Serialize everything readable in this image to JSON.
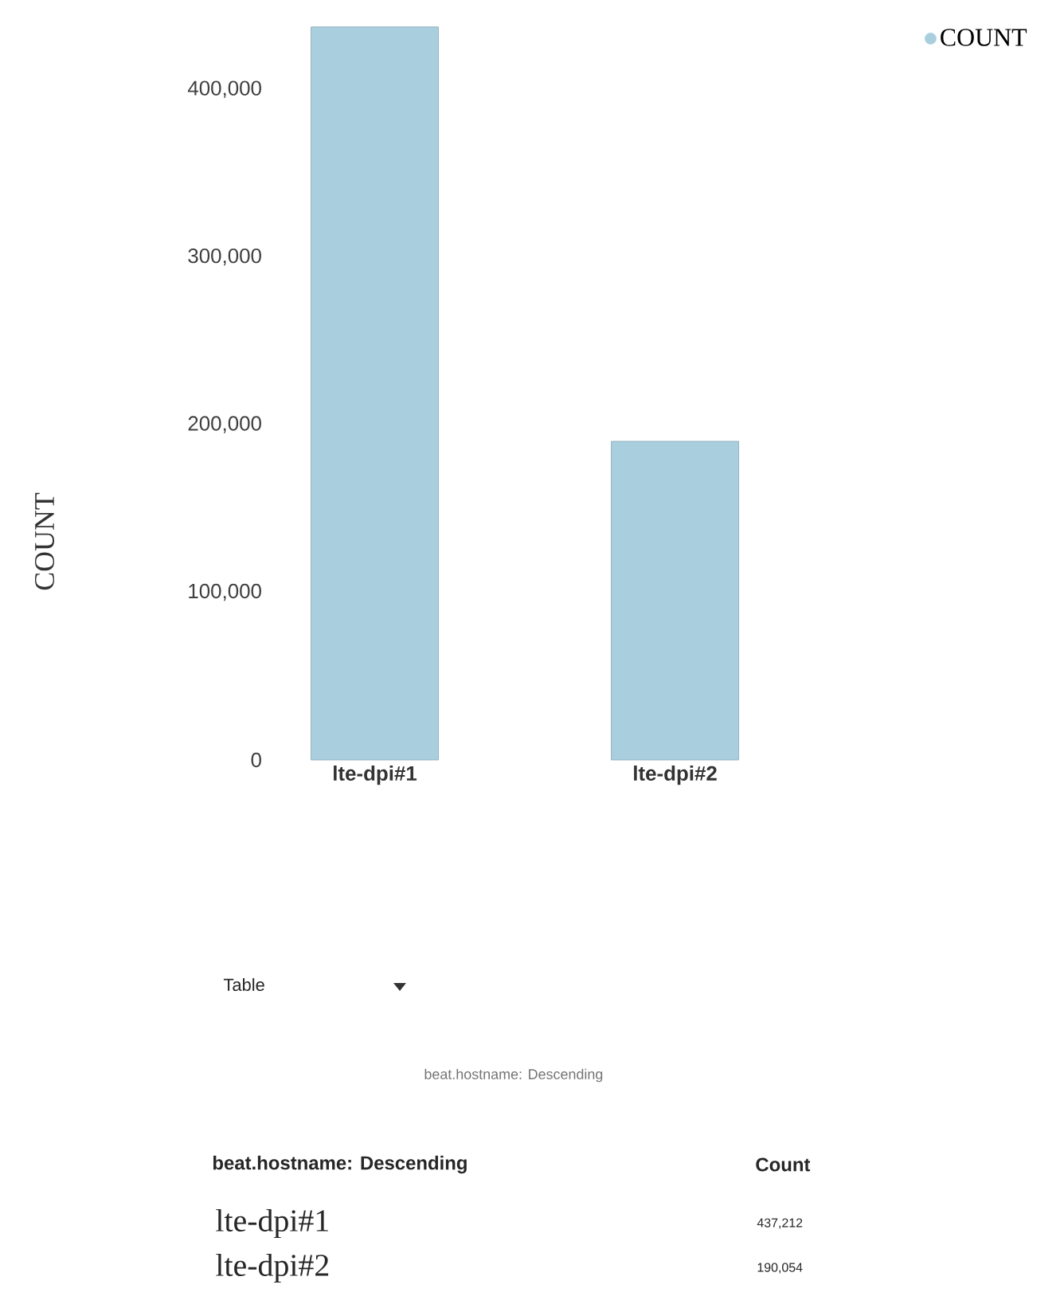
{
  "chart_data": {
    "type": "bar",
    "ylabel": "COUNT",
    "categories": [
      "lte-dpi#1",
      "lte-dpi#2"
    ],
    "series": [
      {
        "name": "COUNT",
        "color": "#a9cfdf",
        "values": [
          437212,
          190054
        ]
      }
    ],
    "ylim": [
      0,
      440000
    ],
    "yticks": [
      {
        "value": 0,
        "label": "0"
      },
      {
        "value": 100000,
        "label": "100,000"
      },
      {
        "value": 200000,
        "label": "200,000"
      },
      {
        "value": 300000,
        "label": "300,000"
      },
      {
        "value": 400000,
        "label": "400,000"
      }
    ],
    "legend": "top right",
    "annotations": [
      "beat.hostname: Descending",
      "Table",
      "beat.hostname: Descending",
      "Count",
      "437,212",
      "190,054"
    ]
  }
}
